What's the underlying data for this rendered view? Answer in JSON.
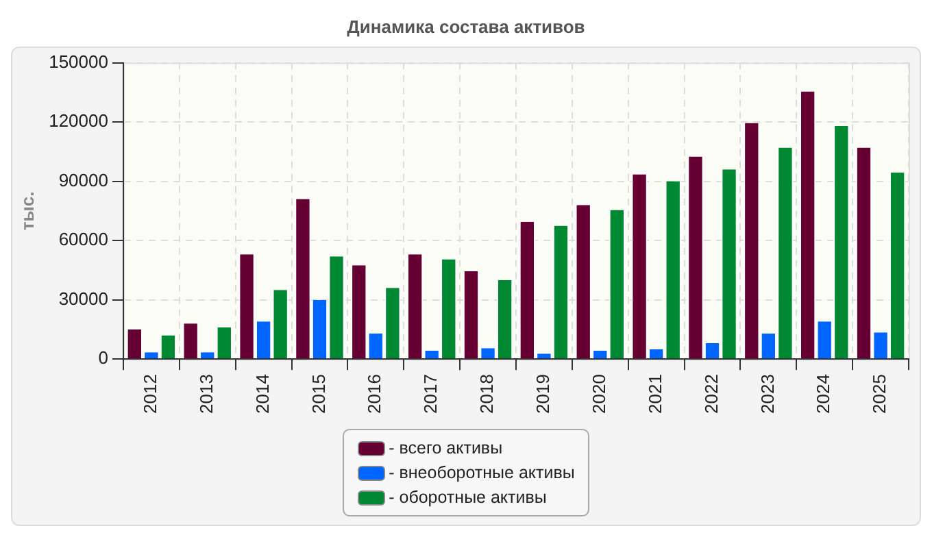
{
  "chart_data": {
    "type": "bar",
    "title": "Динамика состава активов",
    "ylabel": "тыс.",
    "categories": [
      "2012",
      "2013",
      "2014",
      "2015",
      "2016",
      "2017",
      "2018",
      "2019",
      "2020",
      "2021",
      "2022",
      "2023",
      "2024",
      "2025"
    ],
    "series": [
      {
        "name": "- всего активы",
        "color": "#660033",
        "values": [
          15000,
          18000,
          53000,
          81000,
          47500,
          53000,
          44500,
          69500,
          78000,
          93500,
          102500,
          119500,
          135500,
          107000
        ]
      },
      {
        "name": "- внеоборотные активы",
        "color": "#0066ff",
        "values": [
          3400,
          3400,
          19000,
          30000,
          13000,
          4200,
          5500,
          2700,
          4200,
          5000,
          8000,
          13000,
          19000,
          13500
        ]
      },
      {
        "name": "- оборотные активы",
        "color": "#008833",
        "values": [
          12000,
          16000,
          35000,
          52000,
          36000,
          50500,
          40000,
          67500,
          75500,
          90000,
          96000,
          107000,
          118000,
          94500
        ]
      }
    ],
    "ylim": [
      0,
      150000
    ],
    "yticks": [
      0,
      30000,
      60000,
      90000,
      120000,
      150000
    ],
    "grid": true,
    "legend": "bottom"
  }
}
